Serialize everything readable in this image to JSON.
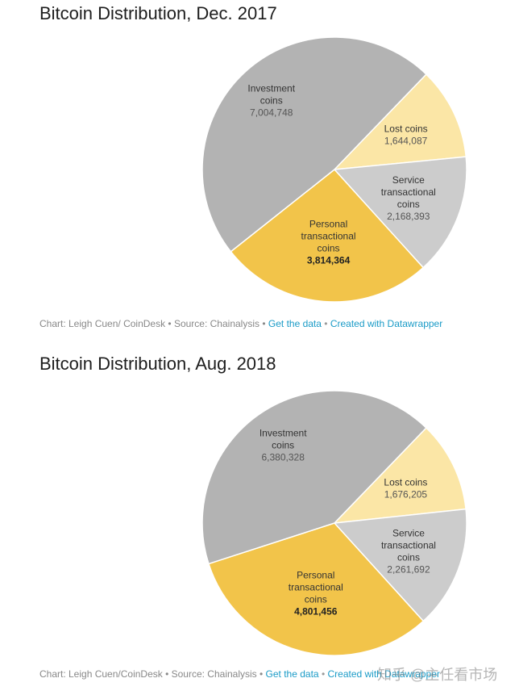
{
  "charts": [
    {
      "title": "Bitcoin Distribution, Dec. 2017",
      "credit": {
        "text": "Chart: Leigh Cuen/ CoinDesk • Source: Chainalysis •",
        "link1": "Get the data",
        "sep": "•",
        "link2": "Created with Datawrapper"
      }
    },
    {
      "title": "Bitcoin Distribution, Aug. 2018",
      "credit": {
        "text": "Chart: Leigh Cuen/CoinDesk • Source: Chainalysis •",
        "link1": "Get the data",
        "sep": "•",
        "link2": "Created with Datawrapper"
      }
    }
  ],
  "chart_data": [
    {
      "type": "pie",
      "title": "Bitcoin Distribution, Dec. 2017",
      "slices": [
        {
          "label": "Investment coins",
          "label_lines": [
            "Investment",
            "coins"
          ],
          "value": 7004748,
          "value_label": "7,004,748",
          "color": "#b3b3b3"
        },
        {
          "label": "Lost coins",
          "label_lines": [
            "Lost coins"
          ],
          "value": 1644087,
          "value_label": "1,644,087",
          "color": "#fbe6a6"
        },
        {
          "label": "Service transactional coins",
          "label_lines": [
            "Service",
            "transactional",
            "coins"
          ],
          "value": 2168393,
          "value_label": "2,168,393",
          "color": "#cccccc"
        },
        {
          "label": "Personal transactional coins",
          "label_lines": [
            "Personal",
            "transactional",
            "coins"
          ],
          "value": 3814364,
          "value_label": "3,814,364",
          "color": "#f2c44a",
          "bold_value": true
        }
      ]
    },
    {
      "type": "pie",
      "title": "Bitcoin Distribution, Aug. 2018",
      "slices": [
        {
          "label": "Investment coins",
          "label_lines": [
            "Investment",
            "coins"
          ],
          "value": 6380328,
          "value_label": "6,380,328",
          "color": "#b3b3b3"
        },
        {
          "label": "Lost coins",
          "label_lines": [
            "Lost coins"
          ],
          "value": 1676205,
          "value_label": "1,676,205",
          "color": "#fbe6a6"
        },
        {
          "label": "Service transactional coins",
          "label_lines": [
            "Service",
            "transactional",
            "coins"
          ],
          "value": 2261692,
          "value_label": "2,261,692",
          "color": "#cccccc"
        },
        {
          "label": "Personal transactional coins",
          "label_lines": [
            "Personal",
            "transactional",
            "coins"
          ],
          "value": 4801456,
          "value_label": "4,801,456",
          "color": "#f2c44a",
          "bold_value": true
        }
      ]
    }
  ],
  "watermark": "知乎 @主任看市场"
}
